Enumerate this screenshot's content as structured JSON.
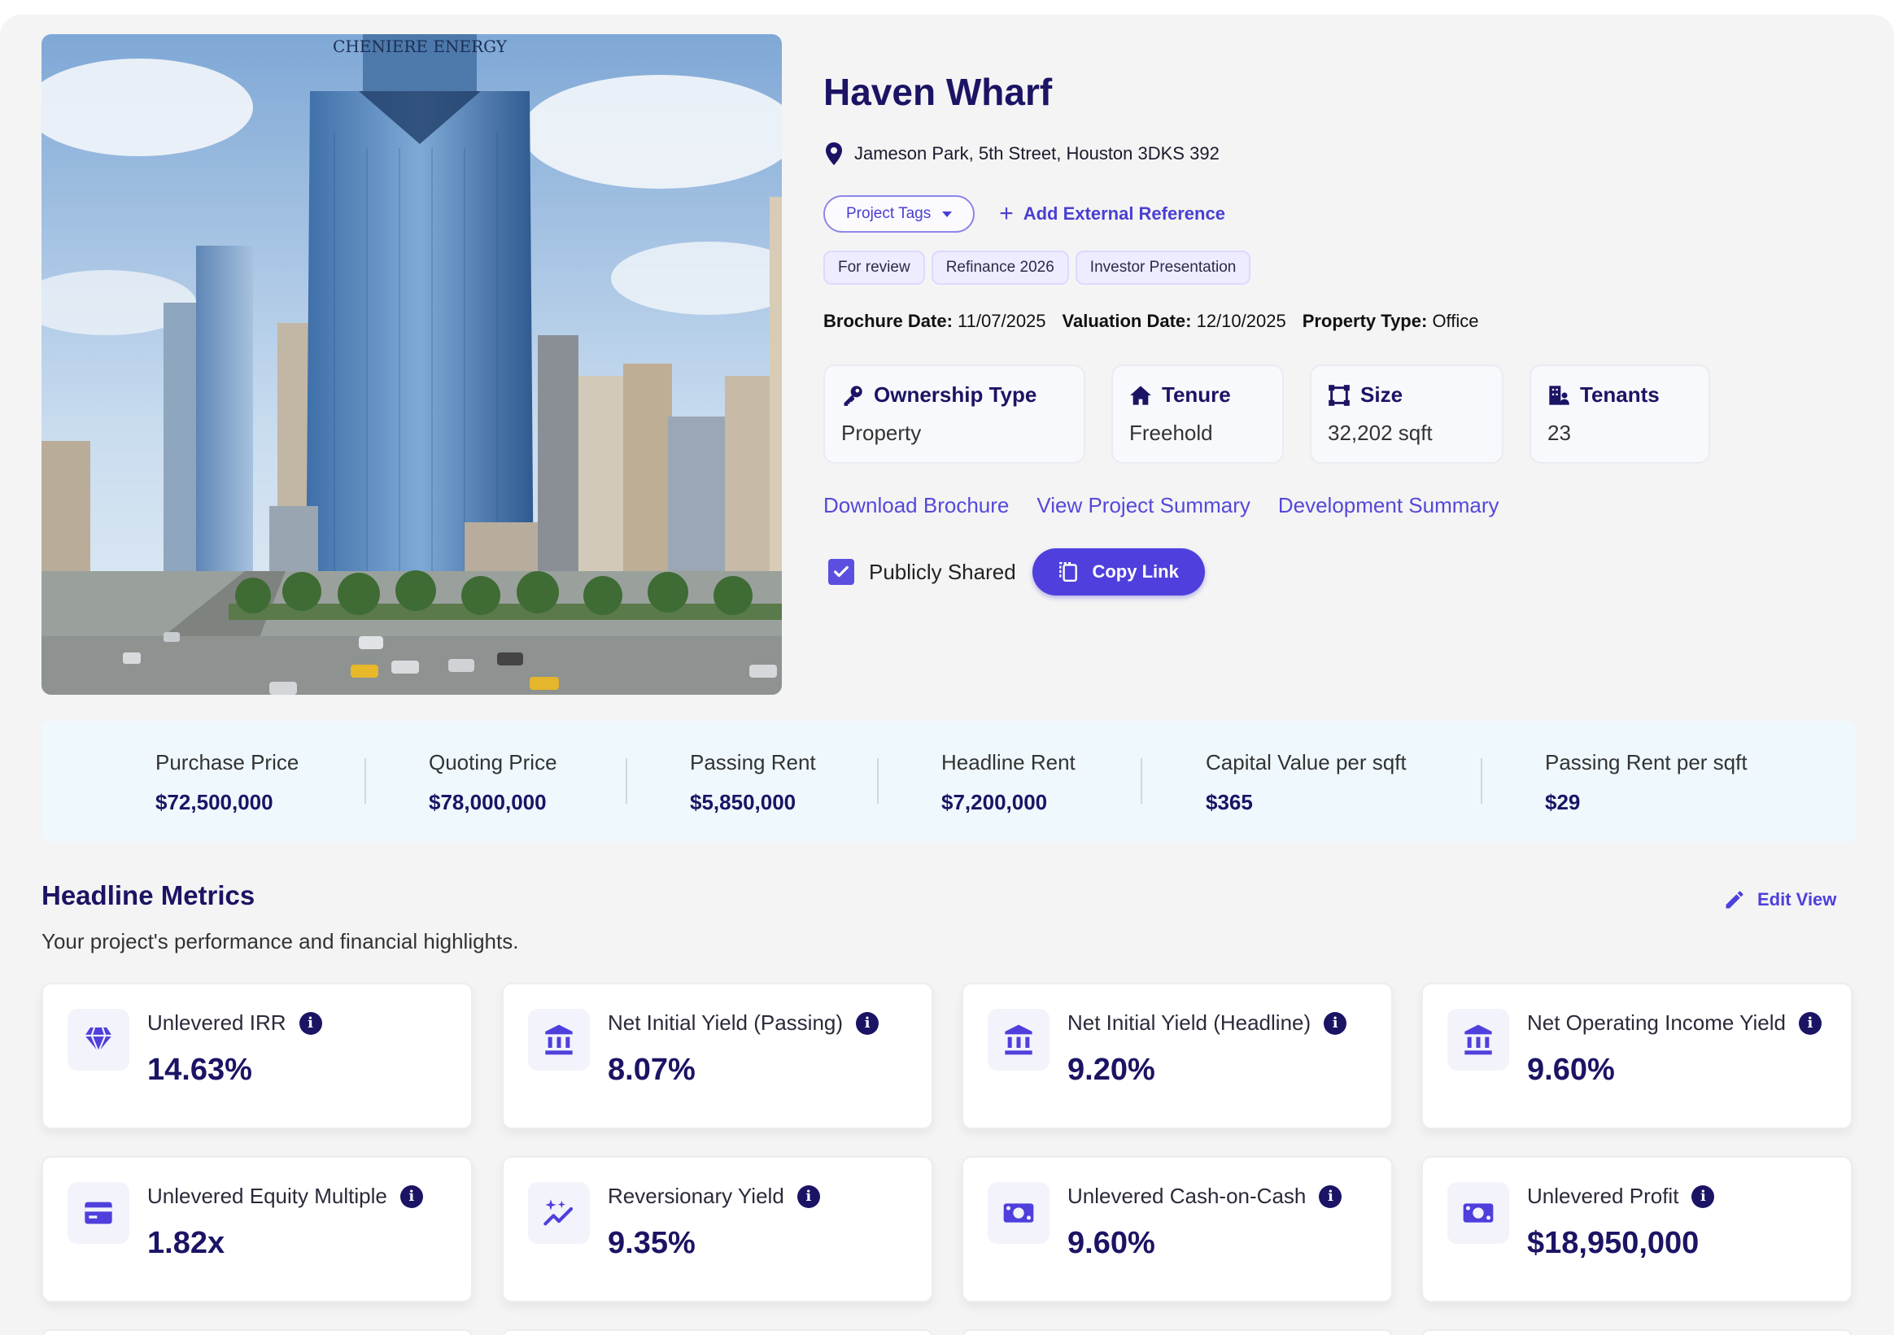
{
  "project": {
    "title": "Haven Wharf",
    "address": "Jameson Park, 5th Street, Houston 3DKS 392",
    "tags_button": "Project Tags",
    "add_reference": "Add External Reference",
    "chips": [
      "For review",
      "Refinance 2026",
      "Investor Presentation"
    ],
    "brochure_date_label": "Brochure Date:",
    "brochure_date": "11/07/2025",
    "valuation_date_label": "Valuation Date:",
    "valuation_date": "12/10/2025",
    "property_type_label": "Property Type:",
    "property_type": "Office",
    "image_sign": "CHENIERE ENERGY"
  },
  "info_cards": [
    {
      "label": "Ownership Type",
      "value": "Property",
      "icon": "key-icon"
    },
    {
      "label": "Tenure",
      "value": "Freehold",
      "icon": "home-icon"
    },
    {
      "label": "Size",
      "value": "32,202 sqft",
      "icon": "area-icon"
    },
    {
      "label": "Tenants",
      "value": "23",
      "icon": "tenants-icon"
    }
  ],
  "links": [
    "Download Brochure",
    "View Project Summary",
    "Development Summary"
  ],
  "sharing": {
    "checkbox_label": "Publicly Shared",
    "checked": true,
    "copy_button": "Copy Link"
  },
  "prices": [
    {
      "label": "Purchase Price",
      "value": "$72,500,000"
    },
    {
      "label": "Quoting Price",
      "value": "$78,000,000"
    },
    {
      "label": "Passing Rent",
      "value": "$5,850,000"
    },
    {
      "label": "Headline Rent",
      "value": "$7,200,000"
    },
    {
      "label": "Capital Value per sqft",
      "value": "$365"
    },
    {
      "label": "Passing Rent per sqft",
      "value": "$29"
    }
  ],
  "metrics_section": {
    "title": "Headline Metrics",
    "subtitle": "Your project's performance and financial highlights.",
    "edit_view": "Edit View"
  },
  "metrics": [
    {
      "label": "Unlevered IRR",
      "value": "14.63%",
      "icon": "diamond-icon"
    },
    {
      "label": "Net Initial Yield (Passing)",
      "value": "8.07%",
      "icon": "bank-icon"
    },
    {
      "label": "Net Initial Yield (Headline)",
      "value": "9.20%",
      "icon": "bank-icon"
    },
    {
      "label": "Net Operating Income Yield",
      "value": "9.60%",
      "icon": "bank-icon"
    },
    {
      "label": "Unlevered Equity Multiple",
      "value": "1.82x",
      "icon": "card-icon"
    },
    {
      "label": "Reversionary Yield",
      "value": "9.35%",
      "icon": "sparkle-trend-icon"
    },
    {
      "label": "Unlevered Cash-on-Cash",
      "value": "9.60%",
      "icon": "cash-icon"
    },
    {
      "label": "Unlevered Profit",
      "value": "$18,950,000",
      "icon": "cash-icon"
    }
  ],
  "colors": {
    "accent": "#4f3fdc",
    "navy": "#1b1464",
    "price_strip_bg": "#eef8fd",
    "page_bg": "#f4f4f4"
  }
}
